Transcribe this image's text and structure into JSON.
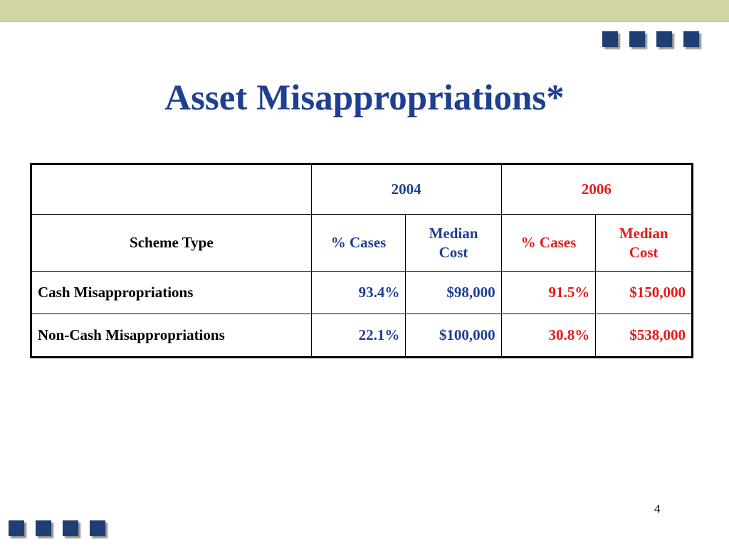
{
  "slide": {
    "title": "Asset Misappropriations*",
    "page_number": "4"
  },
  "colors": {
    "accent_blue": "#1f3f90",
    "accent_red": "#e61a1a",
    "band": "#d3d4a4",
    "square": "#1f3f74"
  },
  "table": {
    "years": [
      "2004",
      "2006"
    ],
    "header": {
      "scheme_type": "Scheme Type",
      "pct_cases": "% Cases",
      "median_line1": "Median",
      "median_line2": "Cost"
    },
    "rows": [
      {
        "scheme": "Cash Misappropriations",
        "pct_2004": "93.4%",
        "median_2004": "$98,000",
        "pct_2006": "91.5%",
        "median_2006": "$150,000"
      },
      {
        "scheme": "Non-Cash Misappropriations",
        "pct_2004": "22.1%",
        "median_2004": "$100,000",
        "pct_2006": "30.8%",
        "median_2006": "$538,000"
      }
    ]
  }
}
